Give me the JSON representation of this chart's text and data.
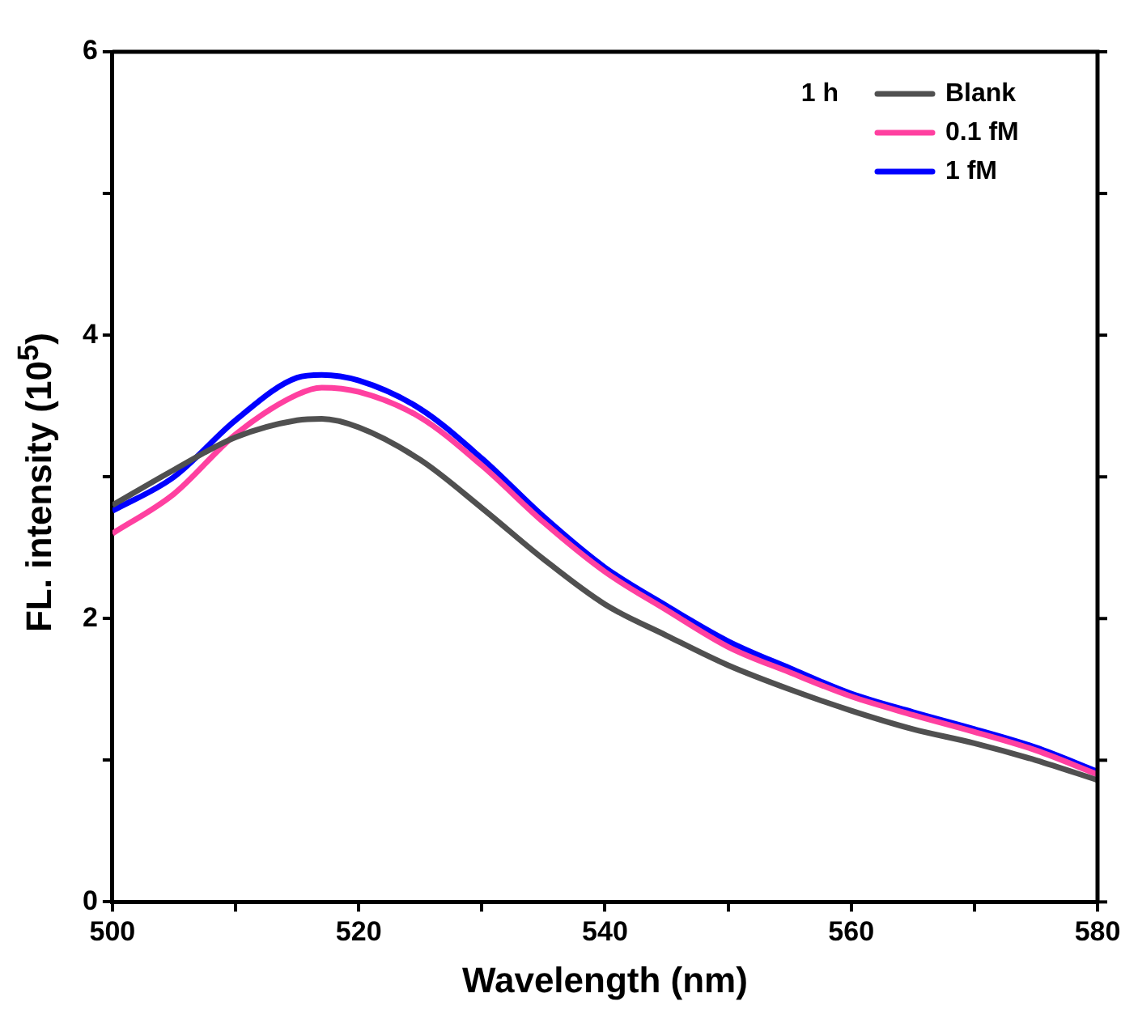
{
  "chart_data": {
    "type": "line",
    "xlabel": "Wavelength (nm)",
    "ylabel": "FL. intensity (10$^{5}$)",
    "legend_title": "1 h",
    "legend": "top right",
    "grid": false,
    "marker": "none",
    "line_style": "solid",
    "x": [
      500,
      505,
      510,
      515,
      517,
      520,
      525,
      530,
      535,
      540,
      545,
      550,
      555,
      560,
      565,
      570,
      575,
      580
    ],
    "xlim": [
      500,
      580
    ],
    "xticks": [
      500,
      {
        "value": 510,
        "label": null
      },
      520,
      {
        "value": 530,
        "label": null
      },
      540,
      {
        "value": 550,
        "label": null
      },
      560,
      {
        "value": 570,
        "label": null
      },
      580
    ],
    "ylim": [
      0,
      6
    ],
    "yticks": [
      0,
      {
        "value": 1,
        "label": null
      },
      2,
      {
        "value": 3,
        "label": null
      },
      4,
      {
        "value": 5,
        "label": null
      },
      6
    ],
    "series": [
      {
        "name": "Blank",
        "color": "#505050",
        "values": [
          2.8,
          3.05,
          3.28,
          3.4,
          3.41,
          3.35,
          3.12,
          2.78,
          2.42,
          2.1,
          1.88,
          1.67,
          1.5,
          1.35,
          1.22,
          1.12,
          1.0,
          0.86
        ]
      },
      {
        "name": "0.1 fM",
        "color": "#ff40a0",
        "values": [
          2.6,
          2.88,
          3.3,
          3.58,
          3.63,
          3.6,
          3.42,
          3.08,
          2.68,
          2.33,
          2.06,
          1.8,
          1.62,
          1.45,
          1.32,
          1.2,
          1.07,
          0.9
        ]
      },
      {
        "name": "1 fM",
        "color": "#0000ff",
        "values": [
          2.76,
          3.0,
          3.4,
          3.7,
          3.72,
          3.68,
          3.48,
          3.13,
          2.72,
          2.36,
          2.09,
          1.84,
          1.65,
          1.47,
          1.34,
          1.22,
          1.09,
          0.92
        ]
      }
    ]
  }
}
